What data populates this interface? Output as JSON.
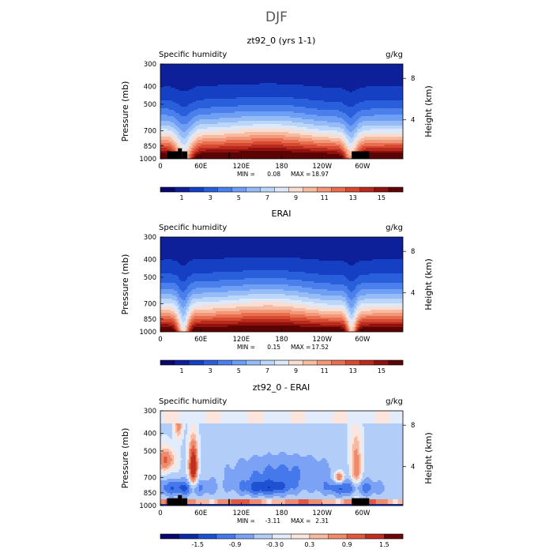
{
  "figure": {
    "title": "DJF"
  },
  "colors": {
    "humidity": [
      "#08086e",
      "#0d1f99",
      "#1640c4",
      "#2a5fdc",
      "#4a7fec",
      "#6f9ff4",
      "#96bcf8",
      "#bcd6fa",
      "#dde8f8",
      "#f8ddd0",
      "#f6bca3",
      "#f29778",
      "#e86e4f",
      "#d64a31",
      "#b82a1c",
      "#8f1210",
      "#5c0404"
    ],
    "difference": [
      "#08086e",
      "#0d2aa6",
      "#1e50d2",
      "#4578ea",
      "#7ba2f4",
      "#b3cdf9",
      "#e2ecfb",
      "#fbe5dc",
      "#f7b9a2",
      "#f08a6c",
      "#e0583e",
      "#be2f1f",
      "#6e0606"
    ],
    "topography": "#000000"
  },
  "chart_data": [
    {
      "type": "heatmap",
      "title": "zt92_0 (yrs 1-1)",
      "left_label": "Specific humidity",
      "right_label": "g/kg",
      "ylabel": "Pressure (mb)",
      "y2label": "Height (km)",
      "xticks": [
        "0",
        "60E",
        "120E",
        "180",
        "120W",
        "60W"
      ],
      "xtick_lon": [
        0,
        60,
        120,
        180,
        240,
        300
      ],
      "xlim": [
        0,
        360
      ],
      "yticks": [
        "300",
        "400",
        "500",
        "700",
        "850",
        "1000"
      ],
      "ytick_p": [
        300,
        400,
        500,
        700,
        850,
        1000
      ],
      "ylim": [
        1000,
        300
      ],
      "y2ticks": [
        "8",
        "4"
      ],
      "y2tick_p": [
        360,
        610
      ],
      "min_label": "MIN =",
      "min_value": "0.08",
      "max_label": "MAX =",
      "max_value": "18.97",
      "colorbar_labels": [
        "1",
        "3",
        "5",
        "7",
        "9",
        "11",
        "13",
        "15"
      ],
      "levels": [
        0.5,
        1,
        2,
        3,
        4,
        5,
        6,
        7,
        8,
        9,
        10,
        11,
        12,
        13,
        14,
        15
      ],
      "surface_q": 17,
      "dry_depressions": [
        {
          "lon": 35,
          "depth": 0.45,
          "width": 10
        },
        {
          "lon": 283,
          "depth": 0.4,
          "width": 8
        }
      ],
      "topography": [
        [
          10,
          27,
          910
        ],
        [
          26,
          32,
          875
        ],
        [
          32,
          40,
          910
        ],
        [
          101,
          103,
          920
        ],
        [
          284,
          300,
          910
        ],
        [
          300,
          310,
          910
        ]
      ]
    },
    {
      "type": "heatmap",
      "title": "ERAI",
      "left_label": "Specific humidity",
      "right_label": "g/kg",
      "ylabel": "Pressure (mb)",
      "y2label": "Height (km)",
      "xticks": [
        "0",
        "60E",
        "120E",
        "180",
        "120W",
        "60W"
      ],
      "xtick_lon": [
        0,
        60,
        120,
        180,
        240,
        300
      ],
      "xlim": [
        0,
        360
      ],
      "yticks": [
        "300",
        "400",
        "500",
        "700",
        "850",
        "1000"
      ],
      "ytick_p": [
        300,
        400,
        500,
        700,
        850,
        1000
      ],
      "ylim": [
        1000,
        300
      ],
      "y2ticks": [
        "8",
        "4"
      ],
      "y2tick_p": [
        360,
        610
      ],
      "min_label": "MIN =",
      "min_value": "0.15",
      "max_label": "MAX =",
      "max_value": "17.52",
      "colorbar_labels": [
        "1",
        "3",
        "5",
        "7",
        "9",
        "11",
        "13",
        "15"
      ],
      "levels": [
        0.5,
        1,
        2,
        3,
        4,
        5,
        6,
        7,
        8,
        9,
        10,
        11,
        12,
        13,
        14,
        15
      ],
      "surface_q": 16.5,
      "dry_depressions": [
        {
          "lon": 34,
          "depth": 0.5,
          "width": 7
        },
        {
          "lon": 284,
          "depth": 0.45,
          "width": 6
        }
      ],
      "topography": []
    },
    {
      "type": "heatmap",
      "title": "zt92_0 - ERAI",
      "left_label": "Specific humidity",
      "right_label": "g/kg",
      "ylabel": "Pressure (mb)",
      "y2label": "Height (km)",
      "xticks": [
        "0",
        "60E",
        "120E",
        "180",
        "120W",
        "60W"
      ],
      "xtick_lon": [
        0,
        60,
        120,
        180,
        240,
        300
      ],
      "xlim": [
        0,
        360
      ],
      "yticks": [
        "300",
        "400",
        "500",
        "700",
        "850",
        "1000"
      ],
      "ytick_p": [
        300,
        400,
        500,
        700,
        850,
        1000
      ],
      "ylim": [
        1000,
        300
      ],
      "y2ticks": [
        "8",
        "4"
      ],
      "y2tick_p": [
        360,
        610
      ],
      "min_label": "MIN =",
      "min_value": "-3.11",
      "max_label": "MAX =",
      "max_value": "2.31",
      "colorbar_labels": [
        "-1.5",
        "-0.9",
        "-0.3",
        "0",
        "0.3",
        "0.9",
        "1.5"
      ],
      "levels": [
        -1.8,
        -1.5,
        -1.2,
        -0.9,
        -0.6,
        -0.3,
        -0.1,
        0.1,
        0.3,
        0.6,
        0.9,
        1.5
      ],
      "positive_anomalies": [
        {
          "lon": 8,
          "p": 560,
          "amp": 0.5,
          "dlon": 10,
          "dp": 60
        },
        {
          "lon": 49,
          "p": 610,
          "amp": 1.2,
          "dlon": 5,
          "dp": 130
        },
        {
          "lon": 27,
          "p": 350,
          "amp": 0.4,
          "dlon": 4,
          "dp": 50
        },
        {
          "lon": 265,
          "p": 700,
          "amp": 0.9,
          "dlon": 5,
          "dp": 40
        },
        {
          "lon": 290,
          "p": 640,
          "amp": 0.5,
          "dlon": 6,
          "dp": 180
        }
      ],
      "topography": [
        [
          10,
          27,
          910
        ],
        [
          26,
          32,
          875
        ],
        [
          32,
          40,
          910
        ],
        [
          101,
          103,
          920
        ],
        [
          284,
          300,
          910
        ],
        [
          300,
          310,
          910
        ]
      ]
    }
  ]
}
